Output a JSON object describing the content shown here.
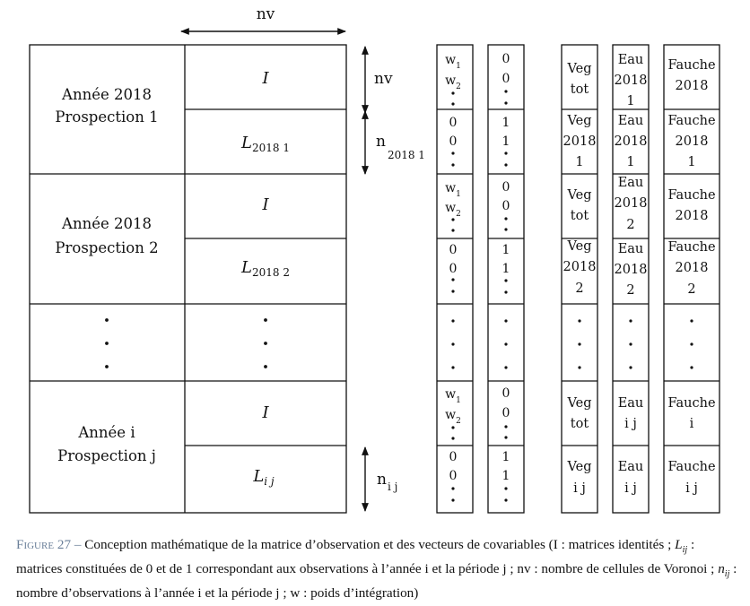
{
  "top_dimension": "nv",
  "blocks": [
    {
      "left_line1": "Année 2018",
      "left_line2": "Prospection 1",
      "upper": "I",
      "lower_base": "L",
      "lower_sub": "2018 1"
    },
    {
      "left_line1": "Année 2018",
      "left_line2": "Prospection 2",
      "upper": "I",
      "lower_base": "L",
      "lower_sub": "2018 2"
    },
    {
      "left_line1": "Année i",
      "left_line2": "Prospection j",
      "upper": "I",
      "lower_base": "L",
      "lower_sub": "i j"
    }
  ],
  "side_labels": {
    "nv": "nv",
    "n_2018_base": "n",
    "n_2018_sub": "2018 1",
    "n_ij_base": "n",
    "n_ij_sub": "i j"
  },
  "vector_w": {
    "w1_base": "w",
    "w1_sub": "1",
    "w2_base": "w",
    "w2_sub": "2",
    "zero": "0",
    "dot": "·"
  },
  "vector_01": {
    "zero": "0",
    "one": "1",
    "dot": "·"
  },
  "vector_veg": {
    "r1": [
      "Veg",
      "tot"
    ],
    "r2": [
      "Veg",
      "2018",
      "1"
    ],
    "r3": [
      "Veg",
      "tot"
    ],
    "r4": [
      "Veg",
      "2018",
      "2"
    ],
    "r5": [
      "Veg",
      "tot"
    ],
    "r6": [
      "Veg",
      "i j"
    ]
  },
  "vector_eau": {
    "r1": [
      "Eau",
      "2018",
      "1"
    ],
    "r2": [
      "Eau",
      "2018",
      "1"
    ],
    "r3": [
      "Eau",
      "2018",
      "2"
    ],
    "r4": [
      "Eau",
      "2018",
      "2"
    ],
    "r5": [
      "Eau",
      "i j"
    ],
    "r6": [
      "Eau",
      "i j"
    ]
  },
  "vector_fauche": {
    "r1": [
      "Fauche",
      "2018"
    ],
    "r2": [
      "Fauche",
      "2018",
      "1"
    ],
    "r3": [
      "Fauche",
      "2018"
    ],
    "r4": [
      "Fauche",
      "2018",
      "2"
    ],
    "r5": [
      "Fauche",
      "i"
    ],
    "r6": [
      "Fauche",
      "i j"
    ]
  },
  "caption": {
    "figure_label": "Figure 27 –",
    "text_before_L": "Conception mathématique de la matrice d’observation et des vecteurs de covariables (I : matrices identités ;",
    "L_base": "L",
    "L_sub": "ij",
    "text_after_L": ": matrices constituées de 0 et de 1 correspondant aux observations à l’année i et la période j ; nv : nombre de cellules de Voronoi ;",
    "n_base": "n",
    "n_sub": "ij",
    "text_after_n": ": nombre d’observations à l’année i et la période j ; w : poids d’intégration)"
  }
}
